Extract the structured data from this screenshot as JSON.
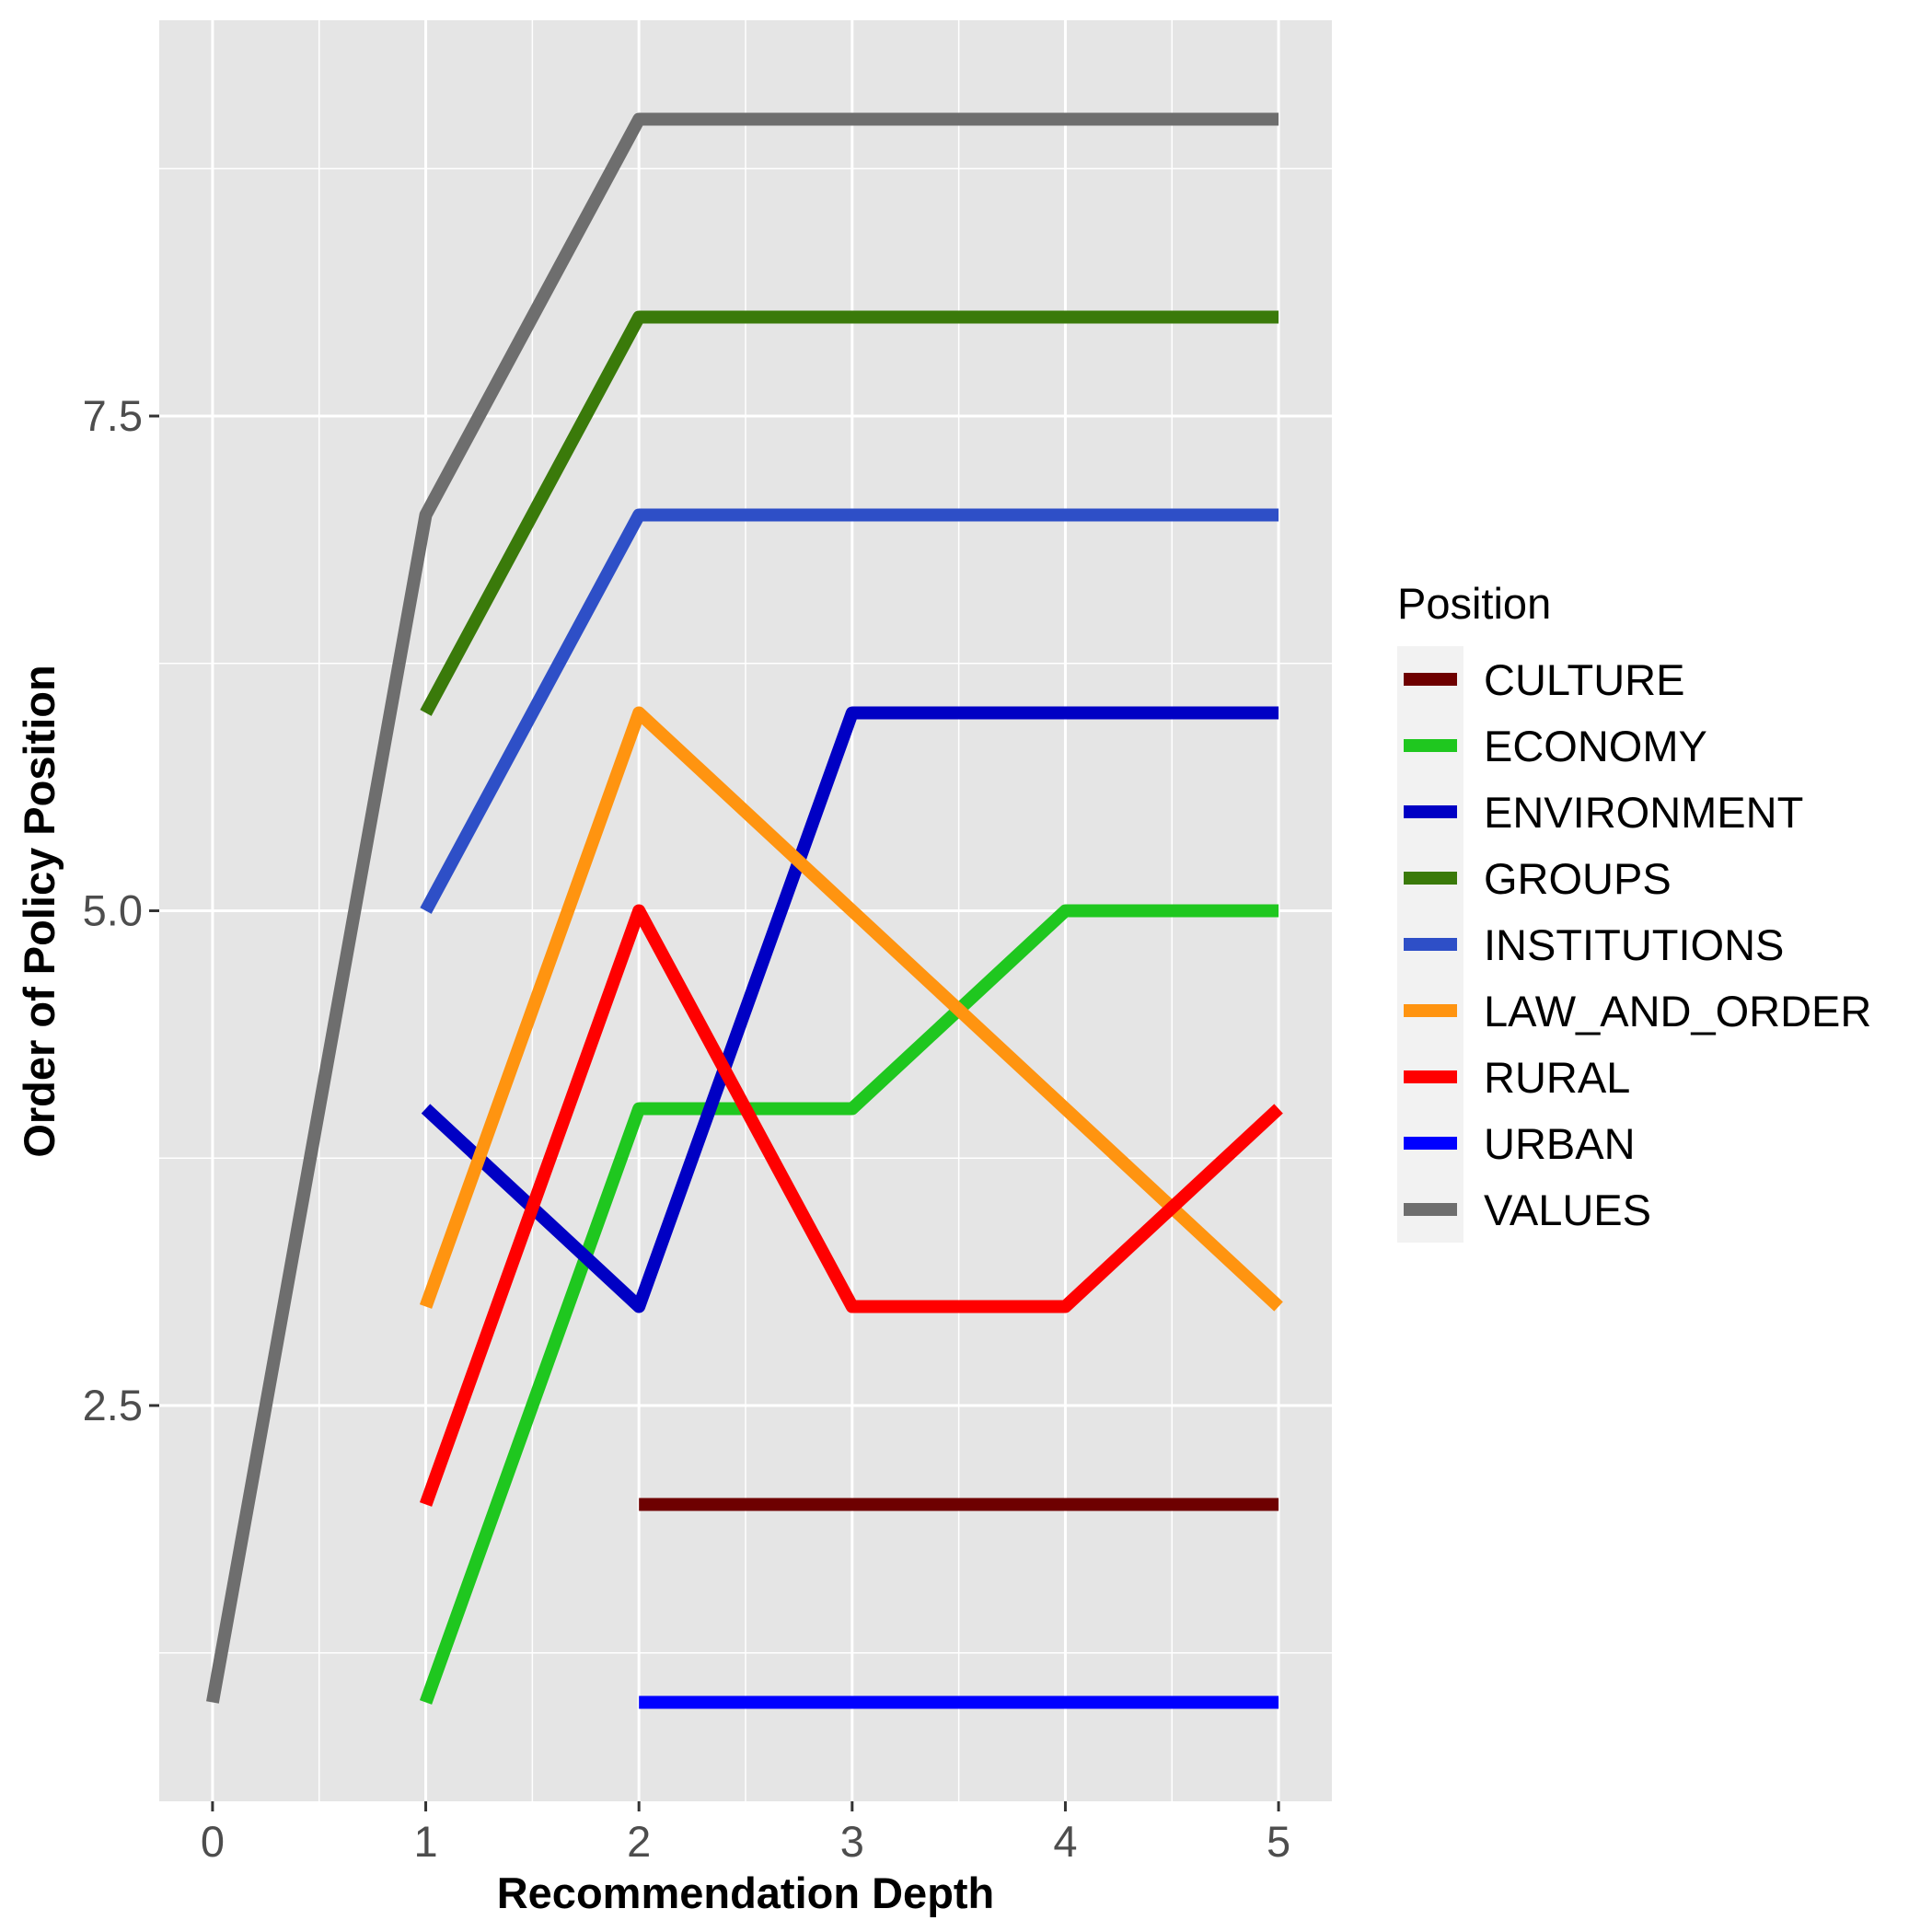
{
  "chart_data": {
    "type": "line",
    "xlabel": "Recommendation Depth",
    "ylabel": "Order of Policy Position",
    "xlim": [
      -0.25,
      5.25
    ],
    "ylim": [
      0.5,
      9.5
    ],
    "x_ticks": [
      0,
      1,
      2,
      3,
      4,
      5
    ],
    "x_tick_labels": [
      "0",
      "1",
      "2",
      "3",
      "4",
      "5"
    ],
    "y_ticks": [
      2.5,
      5.0,
      7.5
    ],
    "y_tick_labels": [
      "2.5",
      "5.0",
      "7.5"
    ],
    "grid": true,
    "legend_title": "Position",
    "legend_position": "right",
    "series": [
      {
        "name": "CULTURE",
        "color": "#6e0000",
        "points": [
          [
            2,
            2
          ],
          [
            3,
            2
          ],
          [
            4,
            2
          ],
          [
            5,
            2
          ]
        ]
      },
      {
        "name": "ECONOMY",
        "color": "#1fc71f",
        "points": [
          [
            1,
            1
          ],
          [
            2,
            4
          ],
          [
            3,
            4
          ],
          [
            4,
            5
          ],
          [
            5,
            5
          ]
        ]
      },
      {
        "name": "ENVIRONMENT",
        "color": "#0000c4",
        "points": [
          [
            1,
            4
          ],
          [
            2,
            3
          ],
          [
            3,
            6
          ],
          [
            4,
            6
          ],
          [
            5,
            6
          ]
        ]
      },
      {
        "name": "GROUPS",
        "color": "#3a7a0a",
        "points": [
          [
            1,
            6
          ],
          [
            2,
            8
          ],
          [
            3,
            8
          ],
          [
            4,
            8
          ],
          [
            5,
            8
          ]
        ]
      },
      {
        "name": "INSTITUTIONS",
        "color": "#2e4fc7",
        "points": [
          [
            1,
            5
          ],
          [
            2,
            7
          ],
          [
            3,
            7
          ],
          [
            4,
            7
          ],
          [
            5,
            7
          ]
        ]
      },
      {
        "name": "LAW_AND_ORDER",
        "color": "#ff9410",
        "points": [
          [
            1,
            3
          ],
          [
            2,
            6
          ],
          [
            3,
            5
          ],
          [
            4,
            4
          ],
          [
            5,
            3
          ]
        ]
      },
      {
        "name": "RURAL",
        "color": "#ff0000",
        "points": [
          [
            1,
            2
          ],
          [
            2,
            5
          ],
          [
            3,
            3
          ],
          [
            4,
            3
          ],
          [
            5,
            4
          ]
        ]
      },
      {
        "name": "URBAN",
        "color": "#0000ff",
        "points": [
          [
            2,
            1
          ],
          [
            3,
            1
          ],
          [
            4,
            1
          ],
          [
            5,
            1
          ]
        ]
      },
      {
        "name": "VALUES",
        "color": "#6e6e6e",
        "points": [
          [
            0,
            1
          ],
          [
            1,
            7
          ],
          [
            2,
            9
          ],
          [
            3,
            9
          ],
          [
            4,
            9
          ],
          [
            5,
            9
          ]
        ]
      }
    ]
  }
}
